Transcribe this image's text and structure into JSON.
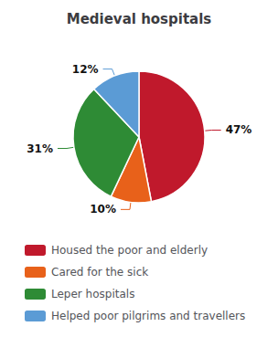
{
  "chart_data": {
    "type": "pie",
    "title": "Medieval hospitals",
    "categories": [
      "Housed the poor and elderly",
      "Cared for the sick",
      "Leper hospitals",
      "Helped poor pilgrims and travellers"
    ],
    "values": [
      47,
      10,
      31,
      12
    ],
    "value_labels": [
      "47%",
      "10%",
      "31%",
      "12%"
    ],
    "colors": [
      "#C0192C",
      "#E8611A",
      "#2E8B35",
      "#5B9BD5"
    ],
    "data_labels": true,
    "legend": "bottom"
  }
}
